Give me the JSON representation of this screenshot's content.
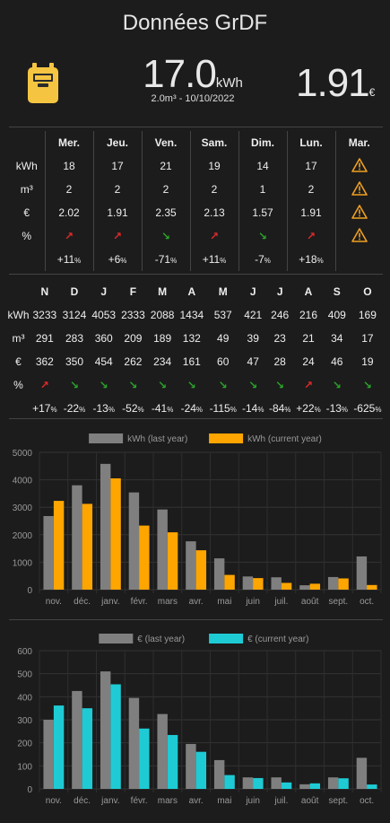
{
  "header": {
    "title": "Données GrDF"
  },
  "current": {
    "value": "17.0",
    "unit": "kWh",
    "sub": "2.0m³ - 10/10/2022",
    "price": "1.91",
    "price_unit": "€"
  },
  "weekly": {
    "labels": [
      "kWh",
      "m³",
      "€",
      "%"
    ],
    "days": [
      {
        "day": "Mer.",
        "kwh": "18",
        "m3": "2",
        "eur": "2.02",
        "trend": "up",
        "pct": "+11",
        "pct_unit": "%"
      },
      {
        "day": "Jeu.",
        "kwh": "17",
        "m3": "2",
        "eur": "1.91",
        "trend": "up",
        "pct": "+6",
        "pct_unit": "%"
      },
      {
        "day": "Ven.",
        "kwh": "21",
        "m3": "2",
        "eur": "2.35",
        "trend": "down",
        "pct": "-71",
        "pct_unit": "%"
      },
      {
        "day": "Sam.",
        "kwh": "19",
        "m3": "2",
        "eur": "2.13",
        "trend": "up",
        "pct": "+11",
        "pct_unit": "%"
      },
      {
        "day": "Dim.",
        "kwh": "14",
        "m3": "1",
        "eur": "1.57",
        "trend": "down",
        "pct": "-7",
        "pct_unit": "%"
      },
      {
        "day": "Lun.",
        "kwh": "17",
        "m3": "2",
        "eur": "1.91",
        "trend": "up",
        "pct": "+18",
        "pct_unit": "%"
      }
    ],
    "today": {
      "day": "Mar.",
      "icon": "warning-icon"
    }
  },
  "monthly": {
    "labels": [
      "kWh",
      "m³",
      "€",
      "%"
    ],
    "months": [
      {
        "m": "N",
        "kwh": "3233",
        "m3": "291",
        "eur": "362",
        "trend": "up",
        "pct": "+17",
        "pct_unit": "%"
      },
      {
        "m": "D",
        "kwh": "3124",
        "m3": "283",
        "eur": "350",
        "trend": "down",
        "pct": "-22",
        "pct_unit": "%"
      },
      {
        "m": "J",
        "kwh": "4053",
        "m3": "360",
        "eur": "454",
        "trend": "down",
        "pct": "-13",
        "pct_unit": "%"
      },
      {
        "m": "F",
        "kwh": "2333",
        "m3": "209",
        "eur": "262",
        "trend": "down",
        "pct": "-52",
        "pct_unit": "%"
      },
      {
        "m": "M",
        "kwh": "2088",
        "m3": "189",
        "eur": "234",
        "trend": "down",
        "pct": "-41",
        "pct_unit": "%"
      },
      {
        "m": "A",
        "kwh": "1434",
        "m3": "132",
        "eur": "161",
        "trend": "down",
        "pct": "-24",
        "pct_unit": "%"
      },
      {
        "m": "M",
        "kwh": "537",
        "m3": "49",
        "eur": "60",
        "trend": "down",
        "pct": "-115",
        "pct_unit": "%"
      },
      {
        "m": "J",
        "kwh": "421",
        "m3": "39",
        "eur": "47",
        "trend": "down",
        "pct": "-14",
        "pct_unit": "%"
      },
      {
        "m": "J",
        "kwh": "246",
        "m3": "23",
        "eur": "28",
        "trend": "down",
        "pct": "-84",
        "pct_unit": "%"
      },
      {
        "m": "A",
        "kwh": "216",
        "m3": "21",
        "eur": "24",
        "trend": "up",
        "pct": "+22",
        "pct_unit": "%"
      },
      {
        "m": "S",
        "kwh": "409",
        "m3": "34",
        "eur": "46",
        "trend": "down",
        "pct": "-13",
        "pct_unit": "%"
      },
      {
        "m": "O",
        "kwh": "169",
        "m3": "17",
        "eur": "19",
        "trend": "down",
        "pct": "-625",
        "pct_unit": "%"
      }
    ]
  },
  "chart_data": [
    {
      "type": "bar",
      "categories": [
        "nov.",
        "déc.",
        "janv.",
        "févr.",
        "mars",
        "avr.",
        "mai",
        "juin",
        "juil.",
        "août",
        "sept.",
        "oct."
      ],
      "series": [
        {
          "name": "kWh (last year)",
          "color": "#7f7f7f",
          "values": [
            2680,
            3800,
            4580,
            3540,
            2920,
            1760,
            1140,
            480,
            450,
            160,
            460,
            1210
          ]
        },
        {
          "name": "kWh (current year)",
          "color": "#ffa500",
          "values": [
            3233,
            3124,
            4053,
            2333,
            2088,
            1434,
            537,
            421,
            246,
            216,
            409,
            169
          ]
        }
      ],
      "ylim": [
        0,
        5000
      ],
      "yticks": [
        0,
        1000,
        2000,
        3000,
        4000,
        5000
      ],
      "legend": "top-center"
    },
    {
      "type": "bar",
      "categories": [
        "nov.",
        "déc.",
        "janv.",
        "févr.",
        "mars",
        "avr.",
        "mai",
        "juin",
        "juil.",
        "août",
        "sept.",
        "oct."
      ],
      "series": [
        {
          "name": "€ (last year)",
          "color": "#7f7f7f",
          "values": [
            300,
            425,
            510,
            395,
            325,
            195,
            125,
            50,
            50,
            20,
            50,
            135
          ]
        },
        {
          "name": "€ (current year)",
          "color": "#1ecbd4",
          "values": [
            362,
            350,
            454,
            262,
            234,
            161,
            60,
            47,
            28,
            24,
            46,
            19
          ]
        }
      ],
      "ylim": [
        0,
        600
      ],
      "yticks": [
        0,
        100,
        200,
        300,
        400,
        500,
        600
      ],
      "legend": "top-center"
    }
  ]
}
